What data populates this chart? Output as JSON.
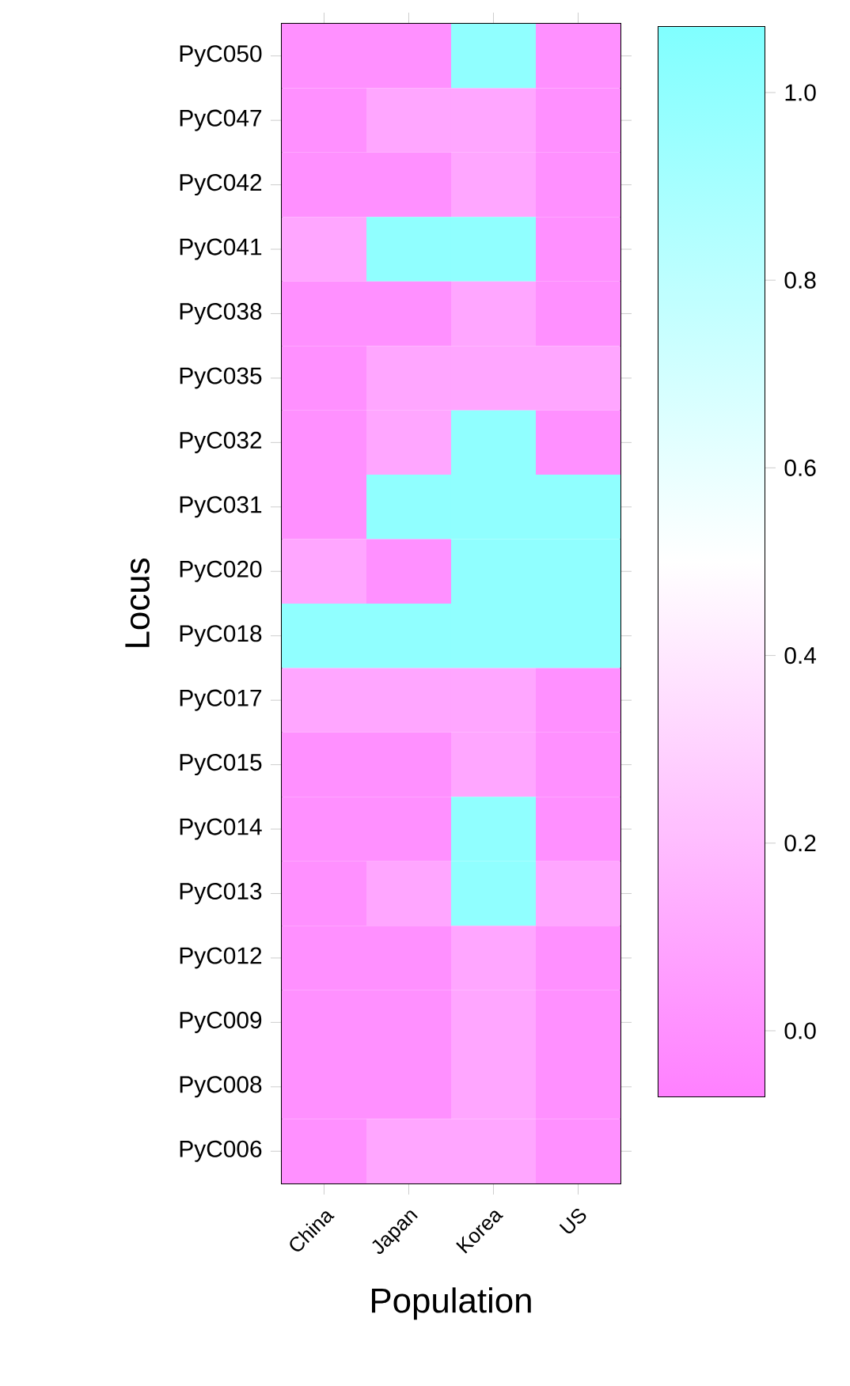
{
  "chart_data": {
    "type": "heatmap",
    "xlabel": "Population",
    "ylabel": "Locus",
    "categories": [
      "China",
      "Japan",
      "Korea",
      "US"
    ],
    "y_categories": [
      "PyC050",
      "PyC047",
      "PyC042",
      "PyC041",
      "PyC038",
      "PyC035",
      "PyC032",
      "PyC031",
      "PyC020",
      "PyC018",
      "PyC017",
      "PyC015",
      "PyC014",
      "PyC013",
      "PyC012",
      "PyC009",
      "PyC008",
      "PyC006"
    ],
    "cells": [
      [
        0,
        0,
        1,
        0
      ],
      [
        0,
        0.1,
        0.1,
        0
      ],
      [
        0,
        0,
        0.1,
        0
      ],
      [
        0.1,
        1,
        1,
        0
      ],
      [
        0,
        0,
        0.1,
        0
      ],
      [
        0,
        0.1,
        0.1,
        0.1
      ],
      [
        0,
        0.1,
        1,
        0
      ],
      [
        0,
        1,
        1,
        1
      ],
      [
        0.1,
        0,
        1,
        1
      ],
      [
        1,
        1,
        1,
        1
      ],
      [
        0.1,
        0.1,
        0.1,
        0
      ],
      [
        0,
        0,
        0.1,
        0
      ],
      [
        0,
        0,
        1,
        0
      ],
      [
        0,
        0.1,
        1,
        0.1
      ],
      [
        0,
        0,
        0.1,
        0
      ],
      [
        0,
        0,
        0.1,
        0
      ],
      [
        0,
        0,
        0.1,
        0
      ],
      [
        0,
        0.1,
        0.1,
        0
      ]
    ],
    "clim": [
      -0.07,
      1.07
    ],
    "cticks": [
      {
        "value": 0,
        "label": "0.0"
      },
      {
        "value": 0.2,
        "label": "0.2"
      },
      {
        "value": 0.4,
        "label": "0.4"
      },
      {
        "value": 0.6,
        "label": "0.6"
      },
      {
        "value": 0.8,
        "label": "0.8"
      },
      {
        "value": 1,
        "label": "1.0"
      }
    ]
  }
}
